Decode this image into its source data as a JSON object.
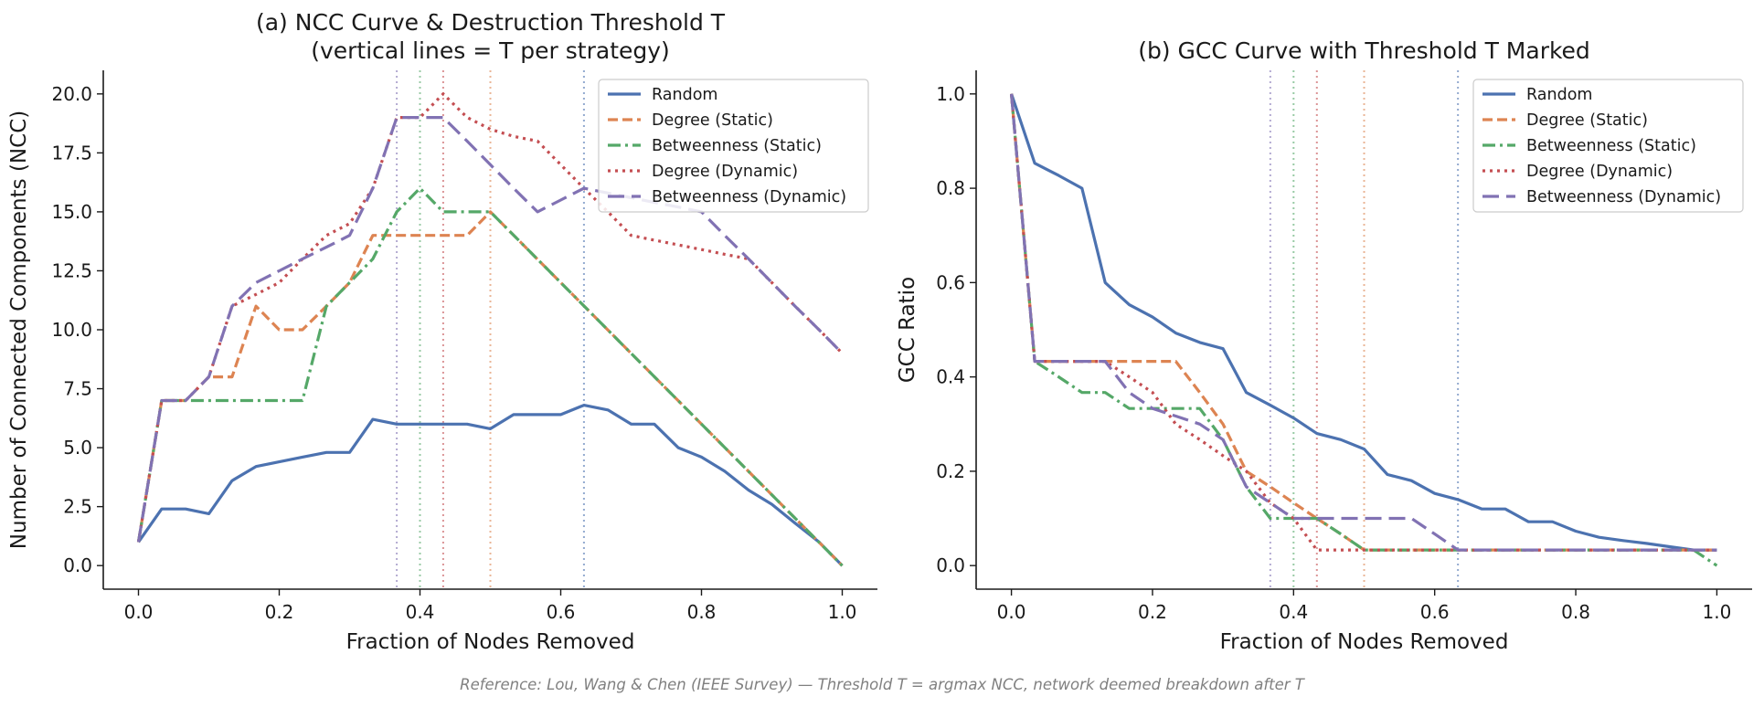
{
  "footnote": "Reference: Lou, Wang & Chen (IEEE Survey) — Threshold T = argmax NCC, network deemed breakdown after T",
  "colors": {
    "Random": "#4c72b0",
    "Degree (Static)": "#dd8452",
    "Betweenness (Static)": "#55a868",
    "Degree (Dynamic)": "#c44e52",
    "Betweenness (Dynamic)": "#8172b3"
  },
  "dash": {
    "Random": "solid",
    "Degree (Static)": "dashed",
    "Betweenness (Static)": "dashdot",
    "Degree (Dynamic)": "dotted",
    "Betweenness (Dynamic)": "longdash"
  },
  "thresholds": [
    {
      "strategy": "Random",
      "x": 0.633
    },
    {
      "strategy": "Degree (Static)",
      "x": 0.5
    },
    {
      "strategy": "Betweenness (Static)",
      "x": 0.4
    },
    {
      "strategy": "Degree (Dynamic)",
      "x": 0.433
    },
    {
      "strategy": "Betweenness (Dynamic)",
      "x": 0.367
    }
  ],
  "chart_data": [
    {
      "type": "line",
      "title": [
        "(a) NCC Curve & Destruction Threshold T",
        "(vertical lines = T per strategy)"
      ],
      "xlabel": "Fraction of Nodes Removed",
      "ylabel": "Number of Connected Components (NCC)",
      "xlim": [
        -0.05,
        1.05
      ],
      "ylim": [
        -1.0,
        21.0
      ],
      "xticks": [
        "0.0",
        "0.2",
        "0.4",
        "0.6",
        "0.8",
        "1.0"
      ],
      "yticks": [
        "0.0",
        "2.5",
        "5.0",
        "7.5",
        "10.0",
        "12.5",
        "15.0",
        "17.5",
        "20.0"
      ],
      "legend": "top-right",
      "grid": false,
      "series": [
        {
          "name": "Random",
          "points": [
            [
              0,
              1
            ],
            [
              0.033,
              2.4
            ],
            [
              0.067,
              2.4
            ],
            [
              0.1,
              2.2
            ],
            [
              0.133,
              3.6
            ],
            [
              0.167,
              4.2
            ],
            [
              0.2,
              4.4
            ],
            [
              0.233,
              4.6
            ],
            [
              0.267,
              4.8
            ],
            [
              0.3,
              4.8
            ],
            [
              0.333,
              6.2
            ],
            [
              0.367,
              6.0
            ],
            [
              0.4,
              6.0
            ],
            [
              0.433,
              6.0
            ],
            [
              0.467,
              6.0
            ],
            [
              0.5,
              5.8
            ],
            [
              0.533,
              6.4
            ],
            [
              0.567,
              6.4
            ],
            [
              0.6,
              6.4
            ],
            [
              0.633,
              6.8
            ],
            [
              0.667,
              6.6
            ],
            [
              0.7,
              6.0
            ],
            [
              0.733,
              6.0
            ],
            [
              0.767,
              5.0
            ],
            [
              0.8,
              4.6
            ],
            [
              0.833,
              4.0
            ],
            [
              0.867,
              3.2
            ],
            [
              0.9,
              2.6
            ],
            [
              0.933,
              1.8
            ],
            [
              0.967,
              1.0
            ],
            [
              1.0,
              0
            ]
          ]
        },
        {
          "name": "Degree (Static)",
          "points": [
            [
              0,
              1
            ],
            [
              0.033,
              7
            ],
            [
              0.067,
              7
            ],
            [
              0.1,
              8
            ],
            [
              0.133,
              8
            ],
            [
              0.167,
              11
            ],
            [
              0.2,
              10
            ],
            [
              0.233,
              10
            ],
            [
              0.267,
              11
            ],
            [
              0.3,
              12
            ],
            [
              0.333,
              14
            ],
            [
              0.367,
              14
            ],
            [
              0.4,
              14
            ],
            [
              0.433,
              14
            ],
            [
              0.467,
              14
            ],
            [
              0.5,
              15
            ],
            [
              1.0,
              0
            ]
          ]
        },
        {
          "name": "Betweenness (Static)",
          "points": [
            [
              0,
              1
            ],
            [
              0.033,
              7
            ],
            [
              0.067,
              7
            ],
            [
              0.1,
              7
            ],
            [
              0.133,
              7
            ],
            [
              0.167,
              7
            ],
            [
              0.2,
              7
            ],
            [
              0.233,
              7
            ],
            [
              0.267,
              11
            ],
            [
              0.3,
              12
            ],
            [
              0.333,
              13
            ],
            [
              0.367,
              15
            ],
            [
              0.4,
              16
            ],
            [
              0.433,
              15
            ],
            [
              0.467,
              15
            ],
            [
              0.5,
              15
            ],
            [
              1.0,
              0
            ]
          ]
        },
        {
          "name": "Degree (Dynamic)",
          "points": [
            [
              0,
              1
            ],
            [
              0.033,
              7
            ],
            [
              0.067,
              7
            ],
            [
              0.1,
              8
            ],
            [
              0.133,
              11
            ],
            [
              0.167,
              11.5
            ],
            [
              0.2,
              12
            ],
            [
              0.233,
              13
            ],
            [
              0.267,
              14
            ],
            [
              0.3,
              14.5
            ],
            [
              0.333,
              16
            ],
            [
              0.367,
              19
            ],
            [
              0.4,
              19
            ],
            [
              0.433,
              20
            ],
            [
              0.467,
              19
            ],
            [
              0.5,
              18.5
            ],
            [
              0.533,
              18.2
            ],
            [
              0.567,
              18
            ],
            [
              0.6,
              17
            ],
            [
              0.633,
              16
            ],
            [
              0.667,
              15
            ],
            [
              0.7,
              14
            ],
            [
              0.733,
              13.8
            ],
            [
              0.767,
              13.6
            ],
            [
              0.8,
              13.4
            ],
            [
              0.833,
              13.2
            ],
            [
              0.867,
              13
            ],
            [
              0.9,
              12
            ],
            [
              0.933,
              11
            ],
            [
              0.967,
              10
            ],
            [
              1.0,
              9
            ]
          ]
        },
        {
          "name": "Betweenness (Dynamic)",
          "points": [
            [
              0,
              1
            ],
            [
              0.033,
              7
            ],
            [
              0.067,
              7
            ],
            [
              0.1,
              8
            ],
            [
              0.133,
              11
            ],
            [
              0.167,
              12
            ],
            [
              0.2,
              12.5
            ],
            [
              0.233,
              13
            ],
            [
              0.267,
              13.5
            ],
            [
              0.3,
              14
            ],
            [
              0.333,
              16
            ],
            [
              0.367,
              19
            ],
            [
              0.4,
              19
            ],
            [
              0.433,
              19
            ],
            [
              0.467,
              18
            ],
            [
              0.5,
              17
            ],
            [
              0.533,
              16
            ],
            [
              0.567,
              15
            ],
            [
              0.6,
              15.5
            ],
            [
              0.633,
              16
            ],
            [
              0.667,
              15.8
            ],
            [
              0.7,
              15.6
            ],
            [
              0.733,
              15.4
            ],
            [
              0.767,
              15.2
            ],
            [
              0.8,
              15
            ],
            [
              0.833,
              14
            ],
            [
              0.867,
              13
            ],
            [
              0.9,
              12
            ],
            [
              0.933,
              11
            ],
            [
              0.967,
              10
            ],
            [
              1.0,
              9
            ]
          ]
        }
      ]
    },
    {
      "type": "line",
      "title": [
        "(b) GCC Curve with Threshold T Marked"
      ],
      "xlabel": "Fraction of Nodes Removed",
      "ylabel": "GCC Ratio",
      "xlim": [
        -0.05,
        1.05
      ],
      "ylim": [
        -0.05,
        1.05
      ],
      "xticks": [
        "0.0",
        "0.2",
        "0.4",
        "0.6",
        "0.8",
        "1.0"
      ],
      "yticks": [
        "0.0",
        "0.2",
        "0.4",
        "0.6",
        "0.8",
        "1.0"
      ],
      "legend": "top-right",
      "grid": false,
      "series": [
        {
          "name": "Random",
          "points": [
            [
              0,
              1.0
            ],
            [
              0.033,
              0.853
            ],
            [
              0.067,
              0.827
            ],
            [
              0.1,
              0.8
            ],
            [
              0.133,
              0.6
            ],
            [
              0.167,
              0.553
            ],
            [
              0.2,
              0.527
            ],
            [
              0.233,
              0.493
            ],
            [
              0.267,
              0.473
            ],
            [
              0.3,
              0.46
            ],
            [
              0.333,
              0.367
            ],
            [
              0.367,
              0.34
            ],
            [
              0.4,
              0.313
            ],
            [
              0.433,
              0.28
            ],
            [
              0.467,
              0.267
            ],
            [
              0.5,
              0.247
            ],
            [
              0.533,
              0.193
            ],
            [
              0.567,
              0.18
            ],
            [
              0.6,
              0.153
            ],
            [
              0.633,
              0.14
            ],
            [
              0.667,
              0.12
            ],
            [
              0.7,
              0.12
            ],
            [
              0.733,
              0.093
            ],
            [
              0.767,
              0.093
            ],
            [
              0.8,
              0.073
            ],
            [
              0.833,
              0.06
            ],
            [
              0.867,
              0.053
            ],
            [
              0.9,
              0.047
            ],
            [
              0.933,
              0.04
            ],
            [
              0.967,
              0.033
            ],
            [
              1.0,
              0.033
            ]
          ]
        },
        {
          "name": "Degree (Static)",
          "points": [
            [
              0,
              1.0
            ],
            [
              0.033,
              0.433
            ],
            [
              0.067,
              0.433
            ],
            [
              0.1,
              0.433
            ],
            [
              0.133,
              0.433
            ],
            [
              0.167,
              0.433
            ],
            [
              0.2,
              0.433
            ],
            [
              0.233,
              0.433
            ],
            [
              0.267,
              0.367
            ],
            [
              0.3,
              0.3
            ],
            [
              0.333,
              0.2
            ],
            [
              0.367,
              0.167
            ],
            [
              0.4,
              0.133
            ],
            [
              0.433,
              0.1
            ],
            [
              0.467,
              0.067
            ],
            [
              0.5,
              0.033
            ],
            [
              1.0,
              0.033
            ]
          ]
        },
        {
          "name": "Betweenness (Static)",
          "points": [
            [
              0,
              1.0
            ],
            [
              0.033,
              0.433
            ],
            [
              0.067,
              0.4
            ],
            [
              0.1,
              0.367
            ],
            [
              0.133,
              0.367
            ],
            [
              0.167,
              0.333
            ],
            [
              0.2,
              0.333
            ],
            [
              0.233,
              0.333
            ],
            [
              0.267,
              0.333
            ],
            [
              0.3,
              0.267
            ],
            [
              0.333,
              0.167
            ],
            [
              0.367,
              0.1
            ],
            [
              0.4,
              0.1
            ],
            [
              0.433,
              0.1
            ],
            [
              0.467,
              0.067
            ],
            [
              0.5,
              0.033
            ],
            [
              0.967,
              0.033
            ],
            [
              1.0,
              0
            ]
          ]
        },
        {
          "name": "Degree (Dynamic)",
          "points": [
            [
              0,
              1.0
            ],
            [
              0.033,
              0.433
            ],
            [
              0.067,
              0.433
            ],
            [
              0.1,
              0.433
            ],
            [
              0.133,
              0.433
            ],
            [
              0.167,
              0.4
            ],
            [
              0.2,
              0.367
            ],
            [
              0.233,
              0.3
            ],
            [
              0.267,
              0.267
            ],
            [
              0.3,
              0.233
            ],
            [
              0.333,
              0.2
            ],
            [
              0.367,
              0.133
            ],
            [
              0.4,
              0.1
            ],
            [
              0.433,
              0.033
            ],
            [
              1.0,
              0.033
            ]
          ]
        },
        {
          "name": "Betweenness (Dynamic)",
          "points": [
            [
              0,
              1.0
            ],
            [
              0.033,
              0.433
            ],
            [
              0.067,
              0.433
            ],
            [
              0.1,
              0.433
            ],
            [
              0.133,
              0.433
            ],
            [
              0.167,
              0.367
            ],
            [
              0.2,
              0.333
            ],
            [
              0.233,
              0.317
            ],
            [
              0.267,
              0.3
            ],
            [
              0.3,
              0.267
            ],
            [
              0.333,
              0.167
            ],
            [
              0.367,
              0.133
            ],
            [
              0.4,
              0.1
            ],
            [
              0.433,
              0.1
            ],
            [
              0.467,
              0.1
            ],
            [
              0.5,
              0.1
            ],
            [
              0.533,
              0.1
            ],
            [
              0.567,
              0.1
            ],
            [
              0.6,
              0.067
            ],
            [
              0.633,
              0.033
            ],
            [
              1.0,
              0.033
            ]
          ]
        }
      ]
    }
  ]
}
